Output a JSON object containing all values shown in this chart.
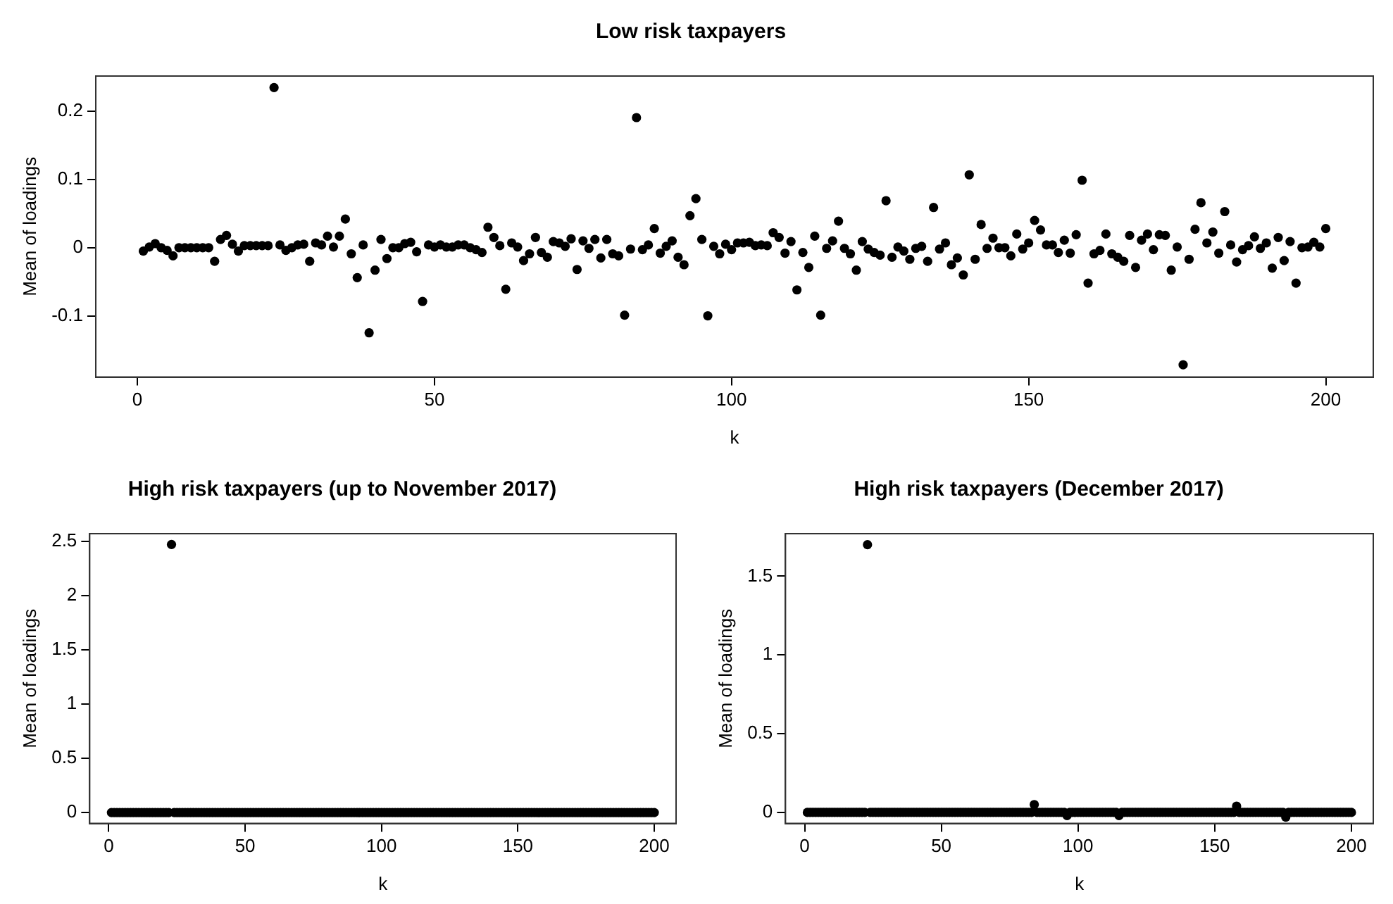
{
  "chart_data": [
    {
      "type": "scatter",
      "title": "Low risk taxpayers",
      "xlabel": "k",
      "ylabel": "Mean of loadings",
      "xlim": [
        -7,
        208
      ],
      "ylim": [
        -0.19,
        0.252
      ],
      "xticks": [
        0,
        50,
        100,
        150,
        200
      ],
      "yticks": [
        -0.1,
        0,
        0.1,
        0.2
      ],
      "grid": false,
      "legend": false,
      "marker": "circle",
      "series": [
        {
          "color": "#000000",
          "x": [
            1,
            2,
            3,
            4,
            5,
            6,
            7,
            8,
            9,
            10,
            11,
            12,
            13,
            14,
            15,
            16,
            17,
            18,
            19,
            20,
            21,
            22,
            23,
            24,
            25,
            26,
            27,
            28,
            29,
            30,
            31,
            32,
            33,
            34,
            35,
            36,
            37,
            38,
            39,
            40,
            41,
            42,
            43,
            44,
            45,
            46,
            47,
            48,
            49,
            50,
            51,
            52,
            53,
            54,
            55,
            56,
            57,
            58,
            59,
            60,
            61,
            62,
            63,
            64,
            65,
            66,
            67,
            68,
            69,
            70,
            71,
            72,
            73,
            74,
            75,
            76,
            77,
            78,
            79,
            80,
            81,
            82,
            83,
            84,
            85,
            86,
            87,
            88,
            89,
            90,
            91,
            92,
            93,
            94,
            95,
            96,
            97,
            98,
            99,
            100,
            101,
            102,
            103,
            104,
            105,
            106,
            107,
            108,
            109,
            110,
            111,
            112,
            113,
            114,
            115,
            116,
            117,
            118,
            119,
            120,
            121,
            122,
            123,
            124,
            125,
            126,
            127,
            128,
            129,
            130,
            131,
            132,
            133,
            134,
            135,
            136,
            137,
            138,
            139,
            140,
            141,
            142,
            143,
            144,
            145,
            146,
            147,
            148,
            149,
            150,
            151,
            152,
            153,
            154,
            155,
            156,
            157,
            158,
            159,
            160,
            161,
            162,
            163,
            164,
            165,
            166,
            167,
            168,
            169,
            170,
            171,
            172,
            173,
            174,
            175,
            176,
            177,
            178,
            179,
            180,
            181,
            182,
            183,
            184,
            185,
            186,
            187,
            188,
            189,
            190,
            191,
            192,
            193,
            194,
            195,
            196,
            197,
            198,
            199,
            200
          ],
          "values": [
            -0.005,
            0.001,
            0.006,
            0,
            -0.004,
            -0.012,
            0,
            0,
            0,
            0,
            0,
            0,
            -0.02,
            0.012,
            0.018,
            0.005,
            -0.005,
            0.003,
            0.003,
            0.003,
            0.003,
            0.003,
            0.235,
            0.004,
            -0.004,
            0,
            0.004,
            0.005,
            -0.02,
            0.007,
            0.004,
            0.017,
            0.001,
            0.017,
            0.042,
            -0.009,
            -0.044,
            0.004,
            -0.125,
            -0.033,
            0.012,
            -0.016,
            0,
            0,
            0.006,
            0.008,
            -0.006,
            -0.079,
            0.004,
            0.001,
            0.004,
            0.001,
            0.001,
            0.004,
            0.004,
            0,
            -0.003,
            -0.007,
            0.03,
            0.015,
            0.003,
            -0.061,
            0.007,
            0.001,
            -0.019,
            -0.009,
            0.015,
            -0.007,
            -0.014,
            0.009,
            0.007,
            0.002,
            0.013,
            -0.032,
            0.01,
            -0.001,
            0.012,
            -0.015,
            0.012,
            -0.009,
            -0.012,
            -0.099,
            -0.002,
            0.191,
            -0.003,
            0.004,
            0.028,
            -0.008,
            0.002,
            0.01,
            -0.014,
            -0.025,
            0.047,
            0.072,
            0.012,
            -0.1,
            0.002,
            -0.009,
            0.005,
            -0.003,
            0.007,
            0.007,
            0.008,
            0.003,
            0.004,
            0.003,
            0.022,
            0.015,
            -0.008,
            0.009,
            -0.062,
            -0.007,
            -0.029,
            0.017,
            -0.099,
            -0.001,
            0.01,
            0.039,
            -0.001,
            -0.009,
            -0.033,
            0.009,
            -0.002,
            -0.007,
            -0.011,
            0.069,
            -0.014,
            0.001,
            -0.005,
            -0.017,
            -0.001,
            0.002,
            -0.02,
            0.059,
            -0.002,
            0.007,
            -0.025,
            -0.015,
            -0.04,
            0.107,
            -0.017,
            0.034,
            -0.001,
            0.014,
            0,
            0,
            -0.012,
            0.02,
            -0.002,
            0.007,
            0.04,
            0.026,
            0.004,
            0.004,
            -0.007,
            0.011,
            -0.008,
            0.019,
            0.099,
            -0.052,
            -0.009,
            -0.004,
            0.02,
            -0.009,
            -0.014,
            -0.02,
            0.018,
            -0.029,
            0.011,
            0.02,
            -0.003,
            0.019,
            0.018,
            -0.033,
            0.001,
            -0.172,
            -0.017,
            0.027,
            0.066,
            0.007,
            0.023,
            -0.008,
            0.053,
            0.004,
            -0.021,
            -0.003,
            0.003,
            0.016,
            -0.001,
            0.007,
            -0.03,
            0.015,
            -0.019,
            0.009,
            -0.052,
            0,
            0.001,
            0.008,
            0.001,
            0.028
          ]
        }
      ]
    },
    {
      "type": "scatter",
      "title": "High risk taxpayers (up to November 2017)",
      "xlabel": "k",
      "ylabel": "Mean of loadings",
      "xlim": [
        -7,
        208
      ],
      "ylim": [
        -0.1,
        2.57
      ],
      "xticks": [
        0,
        50,
        100,
        150,
        200
      ],
      "yticks": [
        0,
        0.5,
        1,
        1.5,
        2,
        2.5
      ],
      "grid": false,
      "legend": false,
      "marker": "circle",
      "series": [
        {
          "color": "#000000",
          "x": [
            1,
            2,
            3,
            4,
            5,
            6,
            7,
            8,
            9,
            10,
            11,
            12,
            13,
            14,
            15,
            16,
            17,
            18,
            19,
            20,
            21,
            22,
            23,
            24,
            25,
            26,
            27,
            28,
            29,
            30,
            31,
            32,
            33,
            34,
            35,
            36,
            37,
            38,
            39,
            40,
            41,
            42,
            43,
            44,
            45,
            46,
            47,
            48,
            49,
            50,
            51,
            52,
            53,
            54,
            55,
            56,
            57,
            58,
            59,
            60,
            61,
            62,
            63,
            64,
            65,
            66,
            67,
            68,
            69,
            70,
            71,
            72,
            73,
            74,
            75,
            76,
            77,
            78,
            79,
            80,
            81,
            82,
            83,
            84,
            85,
            86,
            87,
            88,
            89,
            90,
            91,
            92,
            93,
            94,
            95,
            96,
            97,
            98,
            99,
            100,
            101,
            102,
            103,
            104,
            105,
            106,
            107,
            108,
            109,
            110,
            111,
            112,
            113,
            114,
            115,
            116,
            117,
            118,
            119,
            120,
            121,
            122,
            123,
            124,
            125,
            126,
            127,
            128,
            129,
            130,
            131,
            132,
            133,
            134,
            135,
            136,
            137,
            138,
            139,
            140,
            141,
            142,
            143,
            144,
            145,
            146,
            147,
            148,
            149,
            150,
            151,
            152,
            153,
            154,
            155,
            156,
            157,
            158,
            159,
            160,
            161,
            162,
            163,
            164,
            165,
            166,
            167,
            168,
            169,
            170,
            171,
            172,
            173,
            174,
            175,
            176,
            177,
            178,
            179,
            180,
            181,
            182,
            183,
            184,
            185,
            186,
            187,
            188,
            189,
            190,
            191,
            192,
            193,
            194,
            195,
            196,
            197,
            198,
            199,
            200
          ],
          "values": [
            0,
            0,
            0,
            0,
            0,
            0,
            0,
            0,
            0,
            0,
            0,
            0,
            0,
            0,
            0,
            0,
            0,
            0,
            0,
            0,
            0,
            0,
            2.47,
            0,
            0,
            0,
            0,
            0,
            0,
            0,
            0,
            0,
            0,
            0,
            0,
            0,
            0,
            0,
            0,
            0,
            0,
            0,
            0,
            0,
            0,
            0,
            0,
            0,
            0,
            0,
            0,
            0,
            0,
            0,
            0,
            0,
            0,
            0,
            0,
            0,
            0,
            0,
            0,
            0,
            0,
            0,
            0,
            0,
            0,
            0,
            0,
            0,
            0,
            0,
            0,
            0,
            0,
            0,
            0,
            0,
            0,
            0,
            0,
            0,
            0,
            0,
            0,
            0,
            0,
            0,
            0,
            0,
            0,
            0,
            0,
            0,
            0,
            0,
            0,
            0,
            0,
            0,
            0,
            0,
            0,
            0,
            0,
            0,
            0,
            0,
            0,
            0,
            0,
            0,
            0,
            0,
            0,
            0,
            0,
            0,
            0,
            0,
            0,
            0,
            0,
            0,
            0,
            0,
            0,
            0,
            0,
            0,
            0,
            0,
            0,
            0,
            0,
            0,
            0,
            0,
            0,
            0,
            0,
            0,
            0,
            0,
            0,
            0,
            0,
            0,
            0,
            0,
            0,
            0,
            0,
            0,
            0,
            0,
            0,
            0,
            0,
            0,
            0,
            0,
            0,
            0,
            0,
            0,
            0,
            0,
            0,
            0,
            0,
            0,
            0,
            0,
            0,
            0,
            0,
            0,
            0,
            0,
            0,
            0,
            0,
            0,
            0,
            0,
            0,
            0,
            0,
            0,
            0,
            0,
            0,
            0,
            0,
            0,
            0,
            0
          ]
        }
      ]
    },
    {
      "type": "scatter",
      "title": "High risk taxpayers (December 2017)",
      "xlabel": "k",
      "ylabel": "Mean of loadings",
      "xlim": [
        -7,
        208
      ],
      "ylim": [
        -0.07,
        1.77
      ],
      "xticks": [
        0,
        50,
        100,
        150,
        200
      ],
      "yticks": [
        0,
        0.5,
        1,
        1.5
      ],
      "grid": false,
      "legend": false,
      "marker": "circle",
      "series": [
        {
          "color": "#000000",
          "x": [
            1,
            2,
            3,
            4,
            5,
            6,
            7,
            8,
            9,
            10,
            11,
            12,
            13,
            14,
            15,
            16,
            17,
            18,
            19,
            20,
            21,
            22,
            23,
            24,
            25,
            26,
            27,
            28,
            29,
            30,
            31,
            32,
            33,
            34,
            35,
            36,
            37,
            38,
            39,
            40,
            41,
            42,
            43,
            44,
            45,
            46,
            47,
            48,
            49,
            50,
            51,
            52,
            53,
            54,
            55,
            56,
            57,
            58,
            59,
            60,
            61,
            62,
            63,
            64,
            65,
            66,
            67,
            68,
            69,
            70,
            71,
            72,
            73,
            74,
            75,
            76,
            77,
            78,
            79,
            80,
            81,
            82,
            83,
            84,
            85,
            86,
            87,
            88,
            89,
            90,
            91,
            92,
            93,
            94,
            95,
            96,
            97,
            98,
            99,
            100,
            101,
            102,
            103,
            104,
            105,
            106,
            107,
            108,
            109,
            110,
            111,
            112,
            113,
            114,
            115,
            116,
            117,
            118,
            119,
            120,
            121,
            122,
            123,
            124,
            125,
            126,
            127,
            128,
            129,
            130,
            131,
            132,
            133,
            134,
            135,
            136,
            137,
            138,
            139,
            140,
            141,
            142,
            143,
            144,
            145,
            146,
            147,
            148,
            149,
            150,
            151,
            152,
            153,
            154,
            155,
            156,
            157,
            158,
            159,
            160,
            161,
            162,
            163,
            164,
            165,
            166,
            167,
            168,
            169,
            170,
            171,
            172,
            173,
            174,
            175,
            176,
            177,
            178,
            179,
            180,
            181,
            182,
            183,
            184,
            185,
            186,
            187,
            188,
            189,
            190,
            191,
            192,
            193,
            194,
            195,
            196,
            197,
            198,
            199,
            200
          ],
          "values": [
            0,
            0,
            0,
            0,
            0,
            0,
            0,
            0,
            0,
            0,
            0,
            0,
            0,
            0,
            0,
            0,
            0,
            0,
            0,
            0,
            0,
            0,
            1.7,
            0,
            0,
            0,
            0,
            0,
            0,
            0,
            0,
            0,
            0,
            0,
            0,
            0,
            0,
            0,
            0,
            0,
            0,
            0,
            0,
            0,
            0,
            0,
            0,
            0,
            0,
            0,
            0,
            0,
            0,
            0,
            0,
            0,
            0,
            0,
            0,
            0,
            0,
            0,
            0,
            0,
            0,
            0,
            0,
            0,
            0,
            0,
            0,
            0,
            0,
            0,
            0,
            0,
            0,
            0,
            0,
            0,
            0,
            0,
            0,
            0.05,
            0,
            0,
            0,
            0,
            0,
            0,
            0,
            0,
            0,
            0,
            0,
            -0.02,
            0,
            0,
            0,
            0,
            0,
            0,
            0,
            0,
            0,
            0,
            0,
            0,
            0,
            0,
            0,
            0,
            0,
            0,
            -0.02,
            0,
            0,
            0,
            0,
            0,
            0,
            0,
            0,
            0,
            0,
            0,
            0,
            0,
            0,
            0,
            0,
            0,
            0,
            0,
            0,
            0,
            0,
            0,
            0,
            0,
            0,
            0,
            0,
            0,
            0,
            0,
            0,
            0,
            0,
            0,
            0,
            0,
            0,
            0,
            0,
            0,
            0,
            0.04,
            0,
            0,
            0,
            0,
            0,
            0,
            0,
            0,
            0,
            0,
            0,
            0,
            0,
            0,
            0,
            0,
            0,
            -0.03,
            0,
            0,
            0,
            0,
            0,
            0,
            0,
            0,
            0,
            0,
            0,
            0,
            0,
            0,
            0,
            0,
            0,
            0,
            0,
            0,
            0,
            0,
            0,
            0
          ]
        }
      ]
    }
  ]
}
